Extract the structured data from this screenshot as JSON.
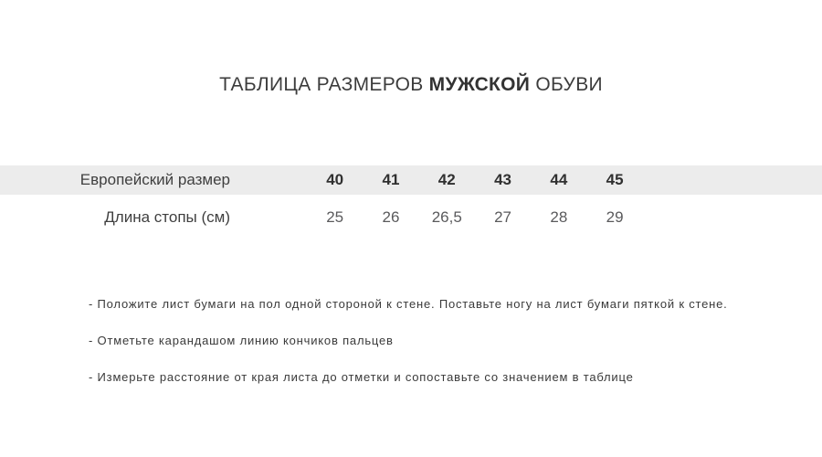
{
  "title": {
    "prefix": "ТАБЛИЦА РАЗМЕРОВ",
    "highlight": "МУЖСКОЙ",
    "suffix": "ОБУВИ"
  },
  "table": {
    "row1_label": "Европейский размер",
    "row2_label": "Длина стопы (см)",
    "sizes": [
      "40",
      "41",
      "42",
      "43",
      "44",
      "45"
    ],
    "lengths": [
      "25",
      "26",
      "26,5",
      "27",
      "28",
      "29"
    ]
  },
  "instructions": [
    "- Положите лист бумаги на пол одной стороной к стене. Поставьте ногу на лист бумаги пяткой к стене.",
    "- Отметьте карандашом линию кончиков пальцев",
    "- Измерьте расстояние от края листа до отметки и сопоставьте со значением в таблице"
  ],
  "colors": {
    "band_background": "#ececec",
    "title_text": "#3c3c3c",
    "size_text": "#303030",
    "length_text": "#5a5a5c",
    "instruction_text": "#3a3a3a"
  }
}
